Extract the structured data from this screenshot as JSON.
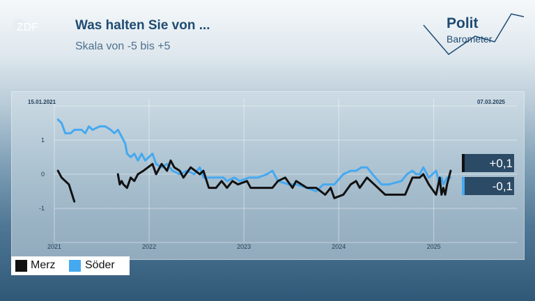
{
  "header": {
    "broadcaster_logo": "ZDF",
    "title": "Was halten Sie von ...",
    "subtitle": "Skala von -5 bis +5"
  },
  "brand": {
    "line1": "Polit",
    "line2": "Barometer"
  },
  "legend": [
    {
      "label": "Merz",
      "color": "#111111"
    },
    {
      "label": "Söder",
      "color": "#45a9f0"
    }
  ],
  "chart_data": {
    "type": "line",
    "date_start_label": "15.01.2021",
    "date_end_label": "07.03.2025",
    "ylim": [
      -1.7,
      2.0
    ],
    "yticks": [
      1,
      0,
      -1
    ],
    "ytick_labels": [
      "1",
      "0",
      "-1"
    ],
    "xticks": [
      "2021-01-01",
      "2022-01-01",
      "2023-01-01",
      "2024-01-01",
      "2025-01-01"
    ],
    "xtick_labels": [
      "2021",
      "2022",
      "2023",
      "2024",
      "2025"
    ],
    "grid": true,
    "series": [
      {
        "name": "Merz",
        "color": "#111111",
        "current_label": "+0,1",
        "segments": [
          [
            [
              "2021-01-15",
              0.1
            ],
            [
              "2021-01-29",
              -0.1
            ],
            [
              "2021-02-26",
              -0.3
            ],
            [
              "2021-03-19",
              -0.8
            ]
          ],
          [
            [
              "2021-09-03",
              0.0
            ],
            [
              "2021-09-10",
              -0.3
            ],
            [
              "2021-09-17",
              -0.2
            ],
            [
              "2021-09-24",
              -0.3
            ],
            [
              "2021-10-08",
              -0.4
            ],
            [
              "2021-10-22",
              -0.1
            ],
            [
              "2021-11-05",
              -0.2
            ],
            [
              "2021-11-19",
              0.0
            ],
            [
              "2021-12-10",
              0.1
            ],
            [
              "2022-01-14",
              0.3
            ],
            [
              "2022-01-28",
              0.0
            ],
            [
              "2022-02-18",
              0.3
            ],
            [
              "2022-03-11",
              0.1
            ],
            [
              "2022-03-25",
              0.4
            ],
            [
              "2022-04-08",
              0.2
            ],
            [
              "2022-04-29",
              0.1
            ],
            [
              "2022-05-13",
              -0.1
            ],
            [
              "2022-06-10",
              0.2
            ],
            [
              "2022-07-15",
              0.0
            ],
            [
              "2022-07-29",
              0.1
            ],
            [
              "2022-08-19",
              -0.4
            ],
            [
              "2022-09-16",
              -0.4
            ],
            [
              "2022-10-07",
              -0.2
            ],
            [
              "2022-10-28",
              -0.4
            ],
            [
              "2022-11-18",
              -0.2
            ],
            [
              "2022-12-09",
              -0.3
            ],
            [
              "2023-01-13",
              -0.2
            ],
            [
              "2023-01-27",
              -0.4
            ],
            [
              "2023-03-03",
              -0.4
            ],
            [
              "2023-04-21",
              -0.4
            ],
            [
              "2023-05-12",
              -0.2
            ],
            [
              "2023-06-09",
              -0.1
            ],
            [
              "2023-07-07",
              -0.4
            ],
            [
              "2023-07-21",
              -0.2
            ],
            [
              "2023-09-01",
              -0.4
            ],
            [
              "2023-10-06",
              -0.4
            ],
            [
              "2023-11-10",
              -0.6
            ],
            [
              "2023-12-01",
              -0.4
            ],
            [
              "2023-12-15",
              -0.7
            ],
            [
              "2024-01-19",
              -0.6
            ],
            [
              "2024-02-16",
              -0.3
            ],
            [
              "2024-03-08",
              -0.2
            ],
            [
              "2024-03-22",
              -0.4
            ],
            [
              "2024-04-19",
              -0.1
            ],
            [
              "2024-05-17",
              -0.3
            ],
            [
              "2024-06-28",
              -0.6
            ],
            [
              "2024-07-12",
              -0.6
            ],
            [
              "2024-09-13",
              -0.6
            ],
            [
              "2024-10-11",
              -0.1
            ],
            [
              "2024-11-08",
              -0.1
            ],
            [
              "2024-11-22",
              0.0
            ],
            [
              "2024-12-13",
              -0.3
            ],
            [
              "2025-01-10",
              -0.6
            ],
            [
              "2025-01-24",
              -0.1
            ],
            [
              "2025-01-31",
              -0.6
            ],
            [
              "2025-02-07",
              -0.4
            ],
            [
              "2025-02-14",
              -0.6
            ],
            [
              "2025-02-21",
              -0.3
            ],
            [
              "2025-03-07",
              0.1
            ]
          ]
        ]
      },
      {
        "name": "Söder",
        "color": "#45a9f0",
        "current_label": "-0,1",
        "segments": [
          [
            [
              "2021-01-15",
              1.6
            ],
            [
              "2021-01-29",
              1.5
            ],
            [
              "2021-02-12",
              1.2
            ],
            [
              "2021-03-05",
              1.2
            ],
            [
              "2021-03-19",
              1.3
            ],
            [
              "2021-04-16",
              1.3
            ],
            [
              "2021-04-30",
              1.2
            ],
            [
              "2021-05-14",
              1.4
            ],
            [
              "2021-05-28",
              1.3
            ],
            [
              "2021-06-25",
              1.4
            ],
            [
              "2021-07-16",
              1.4
            ],
            [
              "2021-08-06",
              1.3
            ],
            [
              "2021-08-20",
              1.2
            ],
            [
              "2021-09-03",
              1.3
            ],
            [
              "2021-09-17",
              1.1
            ],
            [
              "2021-10-01",
              0.9
            ],
            [
              "2021-10-08",
              0.6
            ],
            [
              "2021-10-22",
              0.5
            ],
            [
              "2021-11-05",
              0.6
            ],
            [
              "2021-11-19",
              0.4
            ],
            [
              "2021-12-03",
              0.6
            ],
            [
              "2021-12-17",
              0.4
            ],
            [
              "2022-01-14",
              0.6
            ],
            [
              "2022-01-28",
              0.3
            ],
            [
              "2022-02-18",
              0.2
            ],
            [
              "2022-03-11",
              0.3
            ],
            [
              "2022-04-01",
              0.1
            ],
            [
              "2022-04-29",
              0.0
            ],
            [
              "2022-05-27",
              0.1
            ],
            [
              "2022-06-24",
              0.0
            ],
            [
              "2022-07-15",
              0.2
            ],
            [
              "2022-07-29",
              -0.1
            ],
            [
              "2022-09-16",
              -0.1
            ],
            [
              "2022-10-14",
              -0.1
            ],
            [
              "2022-10-28",
              -0.2
            ],
            [
              "2022-11-25",
              -0.1
            ],
            [
              "2022-12-16",
              -0.2
            ],
            [
              "2023-01-20",
              -0.1
            ],
            [
              "2023-02-24",
              -0.1
            ],
            [
              "2023-03-31",
              0.0
            ],
            [
              "2023-04-21",
              0.1
            ],
            [
              "2023-05-12",
              -0.2
            ],
            [
              "2023-06-23",
              -0.3
            ],
            [
              "2023-07-21",
              -0.3
            ],
            [
              "2023-09-01",
              -0.4
            ],
            [
              "2023-10-06",
              -0.5
            ],
            [
              "2023-11-03",
              -0.3
            ],
            [
              "2023-12-15",
              -0.3
            ],
            [
              "2024-01-19",
              0.0
            ],
            [
              "2024-02-16",
              0.1
            ],
            [
              "2024-03-08",
              0.1
            ],
            [
              "2024-03-29",
              0.2
            ],
            [
              "2024-04-19",
              0.2
            ],
            [
              "2024-05-10",
              0.0
            ],
            [
              "2024-06-14",
              -0.3
            ],
            [
              "2024-07-12",
              -0.3
            ],
            [
              "2024-08-30",
              -0.2
            ],
            [
              "2024-09-20",
              0.0
            ],
            [
              "2024-10-11",
              0.1
            ],
            [
              "2024-10-25",
              0.0
            ],
            [
              "2024-11-08",
              0.0
            ],
            [
              "2024-11-22",
              0.2
            ],
            [
              "2024-12-13",
              -0.1
            ],
            [
              "2025-01-10",
              0.1
            ],
            [
              "2025-01-24",
              -0.3
            ],
            [
              "2025-01-31",
              -0.1
            ],
            [
              "2025-02-07",
              -0.3
            ],
            [
              "2025-02-21",
              -0.1
            ],
            [
              "2025-03-07",
              -0.1
            ]
          ]
        ]
      }
    ]
  }
}
